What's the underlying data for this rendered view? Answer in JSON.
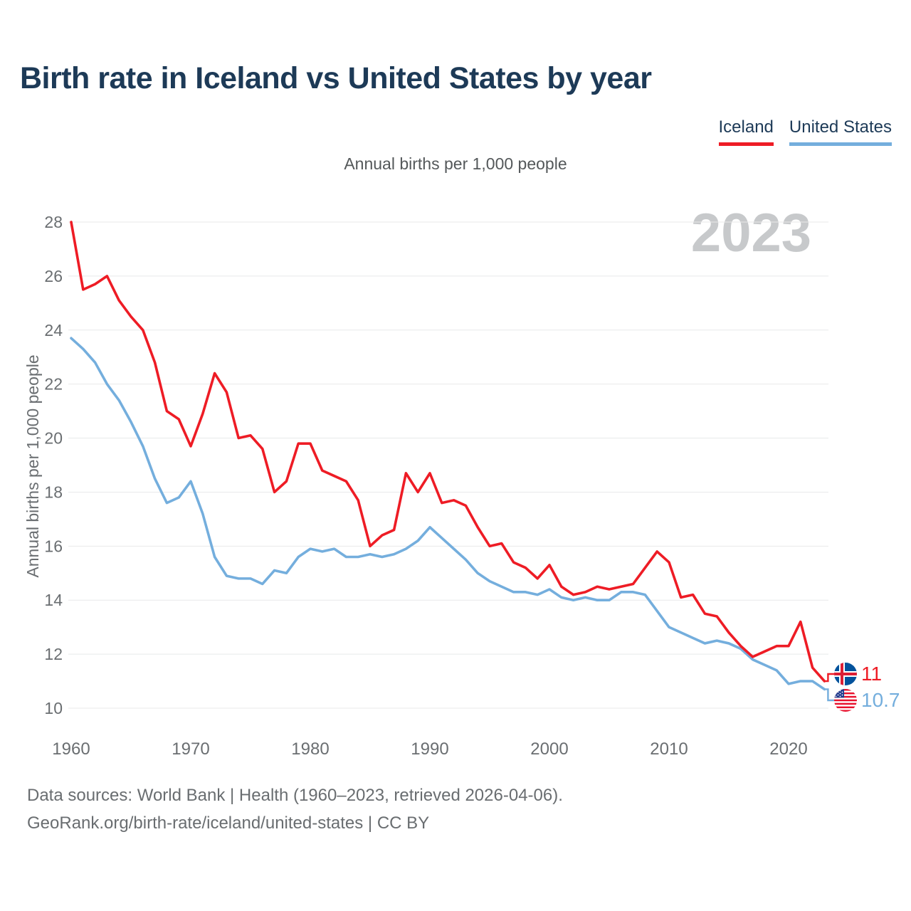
{
  "header": {
    "title": "Birth rate in Iceland vs United States by year",
    "subtitle": "Annual births per 1,000 people",
    "legend": [
      {
        "label": "Iceland",
        "color": "#ee1c25"
      },
      {
        "label": "United States",
        "color": "#74aedd"
      }
    ]
  },
  "watermark": "2023",
  "footer": {
    "line1": "Data sources: World Bank | Health (1960–2023, retrieved 2026-04-06).",
    "line2": "GeoRank.org/birth-rate/iceland/united-states | CC BY"
  },
  "chart_data": {
    "type": "line",
    "title": "Birth rate in Iceland vs United States by year",
    "xlabel": "",
    "ylabel": "Annual births per 1,000 people",
    "x_start": 1960,
    "x_end": 2023,
    "x_ticks": [
      1960,
      1970,
      1980,
      1990,
      2000,
      2010,
      2020
    ],
    "y_ticks": [
      28,
      26,
      24,
      22,
      20,
      18,
      16,
      14,
      12,
      10
    ],
    "ylim": [
      10,
      28
    ],
    "grid": true,
    "legend_position": "top-right",
    "axis_text_color": "#6a6e71",
    "grid_color": "#e8e9ea",
    "series": [
      {
        "name": "Iceland",
        "color": "#ee1c25",
        "end_label": "11",
        "flag": "iceland-flag",
        "values": [
          28.0,
          25.5,
          25.7,
          26.0,
          25.1,
          24.5,
          24.0,
          22.8,
          21.0,
          20.7,
          19.7,
          20.9,
          22.4,
          21.7,
          20.0,
          20.1,
          19.6,
          18.0,
          18.4,
          19.8,
          19.8,
          18.8,
          18.6,
          18.4,
          17.7,
          16.0,
          16.4,
          16.6,
          18.7,
          18.0,
          18.7,
          17.6,
          17.7,
          17.5,
          16.7,
          16.0,
          16.1,
          15.4,
          15.2,
          14.8,
          15.3,
          14.5,
          14.2,
          14.3,
          14.5,
          14.4,
          14.5,
          14.6,
          15.2,
          15.8,
          15.4,
          14.1,
          14.2,
          13.5,
          13.4,
          12.8,
          12.3,
          11.9,
          12.1,
          12.3,
          12.3,
          13.2,
          11.5,
          11.0
        ]
      },
      {
        "name": "United States",
        "color": "#74aedd",
        "end_label": "10.7",
        "flag": "us-flag",
        "values": [
          23.7,
          23.3,
          22.8,
          22.0,
          21.4,
          20.6,
          19.7,
          18.5,
          17.6,
          17.8,
          18.4,
          17.2,
          15.6,
          14.9,
          14.8,
          14.8,
          14.6,
          15.1,
          15.0,
          15.6,
          15.9,
          15.8,
          15.9,
          15.6,
          15.6,
          15.7,
          15.6,
          15.7,
          15.9,
          16.2,
          16.7,
          16.3,
          15.9,
          15.5,
          15.0,
          14.7,
          14.5,
          14.3,
          14.3,
          14.2,
          14.4,
          14.1,
          14.0,
          14.1,
          14.0,
          14.0,
          14.3,
          14.3,
          14.2,
          13.6,
          13.0,
          12.8,
          12.6,
          12.4,
          12.5,
          12.4,
          12.2,
          11.8,
          11.6,
          11.4,
          10.9,
          11.0,
          11.0,
          10.7
        ]
      }
    ]
  }
}
